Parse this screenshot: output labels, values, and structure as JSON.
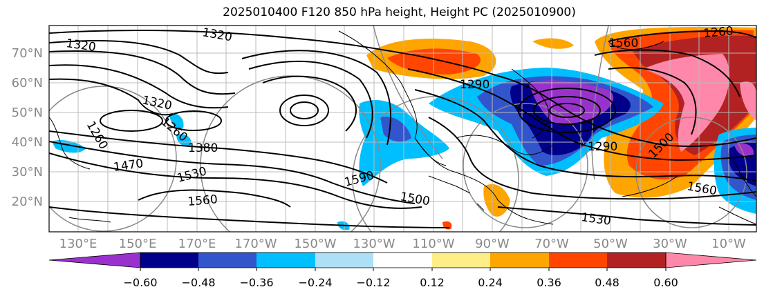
{
  "title": "2025010400 F120 850 hPa height, Height PC (2025010900)",
  "map": {
    "lat_labels": [
      "70°N",
      "60°N",
      "50°N",
      "40°N",
      "30°N",
      "20°N"
    ],
    "lon_labels": [
      "130°E",
      "150°E",
      "170°E",
      "170°W",
      "150°W",
      "130°W",
      "110°W",
      "90°W",
      "70°W",
      "50°W",
      "30°W",
      "10°W"
    ],
    "contour_labels": [
      "1320",
      "1320",
      "1320",
      "1260",
      "1260",
      "1380",
      "1470",
      "1530",
      "1560",
      "1590",
      "1500",
      "1530",
      "1560",
      "1500",
      "1260",
      "1290",
      "1290",
      "1560"
    ]
  },
  "colorbar": {
    "ticks": [
      "−0.60",
      "−0.48",
      "−0.36",
      "−0.24",
      "−0.12",
      "0.12",
      "0.24",
      "0.36",
      "0.48",
      "0.60"
    ],
    "colors": [
      "#9932CC",
      "#00008B",
      "#3355CC",
      "#00BFFF",
      "#ADDFF7",
      "#FFFFFF",
      "#FFEE88",
      "#FFA500",
      "#FF4500",
      "#B22222",
      "#FF88AA"
    ]
  }
}
